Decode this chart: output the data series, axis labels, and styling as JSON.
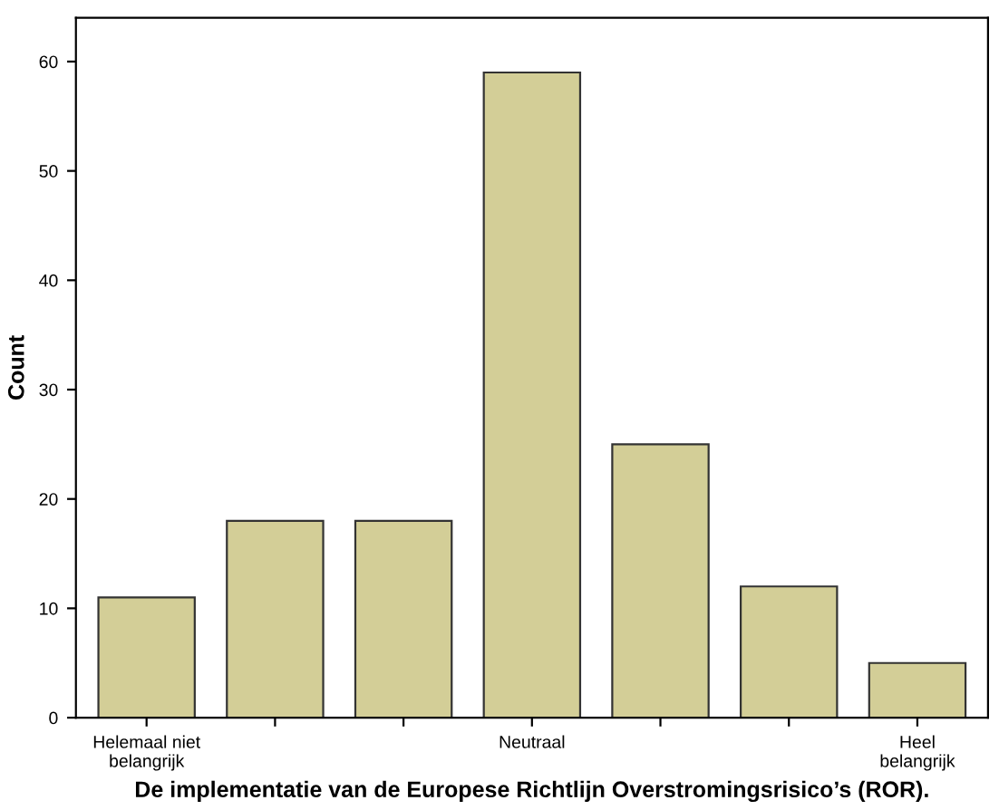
{
  "chart_data": {
    "type": "bar",
    "xlabel": "De implementatie van de Europese Richtlijn Overstromingsrisico’s (ROR).",
    "ylabel": "Count",
    "categories": [
      "Helemaal niet\nbelangrijk",
      null,
      null,
      "Neutraal",
      null,
      null,
      "Heel\nbelangrijk"
    ],
    "values": [
      11,
      18,
      18,
      59,
      25,
      12,
      5
    ],
    "color": "#d3ce97",
    "ylim": [
      0,
      64
    ],
    "yticks": [
      0,
      10,
      20,
      30,
      40,
      50,
      60
    ],
    "grid": false
  }
}
